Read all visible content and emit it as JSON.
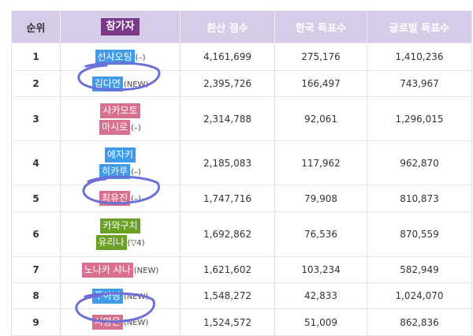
{
  "headers": {
    "rank": "순위",
    "participant": "참가자",
    "converted": "환산 점수",
    "korea": "한국 득표수",
    "global": "글로벌 득표수"
  },
  "colors": {
    "blue_name": "#3d9be9",
    "pink_name": "#d9708f",
    "green_name": "#6aa125",
    "header_purple": "#d7cce8",
    "header_pill": "#7b3a88",
    "annotation": "#6c6fd8"
  },
  "rows": [
    {
      "rank": "1",
      "name": [
        "선샤오팅"
      ],
      "color": "blue",
      "tag": "(–)",
      "converted": "4,161,699",
      "korea": "275,176",
      "global": "1,410,236"
    },
    {
      "rank": "2",
      "name": [
        "김다연"
      ],
      "color": "blue",
      "tag": "(NEW)",
      "converted": "2,395,726",
      "korea": "166,497",
      "global": "743,967"
    },
    {
      "rank": "3",
      "name": [
        "사카모토",
        "마시로"
      ],
      "color": "pink",
      "tag": "(–)",
      "converted": "2,314,788",
      "korea": "92,061",
      "global": "1,296,015"
    },
    {
      "rank": "4",
      "name": [
        "에자키",
        "히카루"
      ],
      "color": "blue",
      "tag": "(–)",
      "converted": "2,185,083",
      "korea": "117,962",
      "global": "962,870"
    },
    {
      "rank": "5",
      "name": [
        "최유진"
      ],
      "color": "pink",
      "tag": "(–)",
      "converted": "1,747,716",
      "korea": "79,908",
      "global": "810,873"
    },
    {
      "rank": "6",
      "name": [
        "카와구치",
        "유리나"
      ],
      "color": "green",
      "tag": "(▽4)",
      "converted": "1,692,862",
      "korea": "76,536",
      "global": "870,559"
    },
    {
      "rank": "7",
      "name": [
        "노나카 샤나"
      ],
      "color": "pink",
      "tag": "(NEW)",
      "converted": "1,621,602",
      "korea": "103,234",
      "global": "582,949"
    },
    {
      "rank": "8",
      "name": [
        "푸아닝"
      ],
      "color": "blue",
      "tag": "(NEW)",
      "converted": "1,548,272",
      "korea": "42,833",
      "global": "1,024,070"
    },
    {
      "rank": "9",
      "name": [
        "서영은"
      ],
      "color": "pink",
      "tag": "(NEW)",
      "converted": "1,524,572",
      "korea": "51,009",
      "global": "862,836"
    }
  ]
}
